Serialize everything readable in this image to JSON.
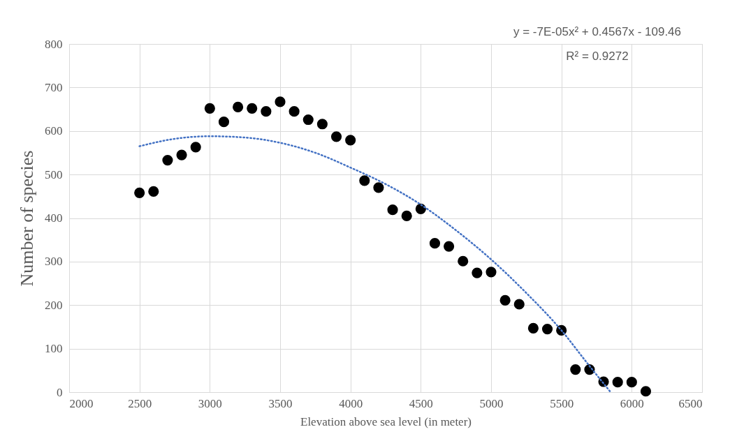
{
  "chart_data": {
    "type": "scatter",
    "xlabel": "Elevation above sea level (in meter)",
    "ylabel": "Number of species",
    "annotations": [
      "y = -7E-05x² + 0.4567x - 109.46",
      "R² = 0.9272"
    ],
    "xlim": [
      2000,
      6500
    ],
    "xticks": [
      2000,
      2500,
      3000,
      3500,
      4000,
      4500,
      5000,
      5500,
      6000,
      6500
    ],
    "ylim": [
      0,
      800
    ],
    "yticks": [
      0,
      100,
      200,
      300,
      400,
      500,
      600,
      700,
      800
    ],
    "grid": true,
    "legend": false,
    "series": [
      {
        "type": "scatter",
        "color": "#000000",
        "marker": "circle",
        "x": [
          2500,
          2600,
          2700,
          2800,
          2900,
          3000,
          3100,
          3200,
          3300,
          3400,
          3500,
          3600,
          3700,
          3800,
          3900,
          4000,
          4100,
          4200,
          4300,
          4400,
          4500,
          4600,
          4700,
          4800,
          4900,
          5000,
          5100,
          5200,
          5300,
          5400,
          5500,
          5600,
          5700,
          5800,
          5900,
          6000,
          6100
        ],
        "values": [
          458,
          461,
          533,
          545,
          563,
          652,
          621,
          655,
          652,
          645,
          667,
          645,
          626,
          616,
          587,
          579,
          486,
          470,
          419,
          405,
          421,
          342,
          335,
          301,
          274,
          276,
          211,
          202,
          147,
          145,
          142,
          52,
          52,
          24,
          23,
          23,
          2
        ]
      },
      {
        "type": "line",
        "color": "#4472c4",
        "line_style": "dotted",
        "x": [
          2500,
          2750,
          3000,
          3250,
          3500,
          3750,
          4000,
          4250,
          4500,
          4750,
          5000,
          5250,
          5500,
          5700,
          5850
        ],
        "values": [
          565,
          582,
          588,
          585,
          573,
          550,
          516,
          478,
          431,
          372,
          305,
          228,
          142,
          60,
          0
        ]
      }
    ]
  }
}
